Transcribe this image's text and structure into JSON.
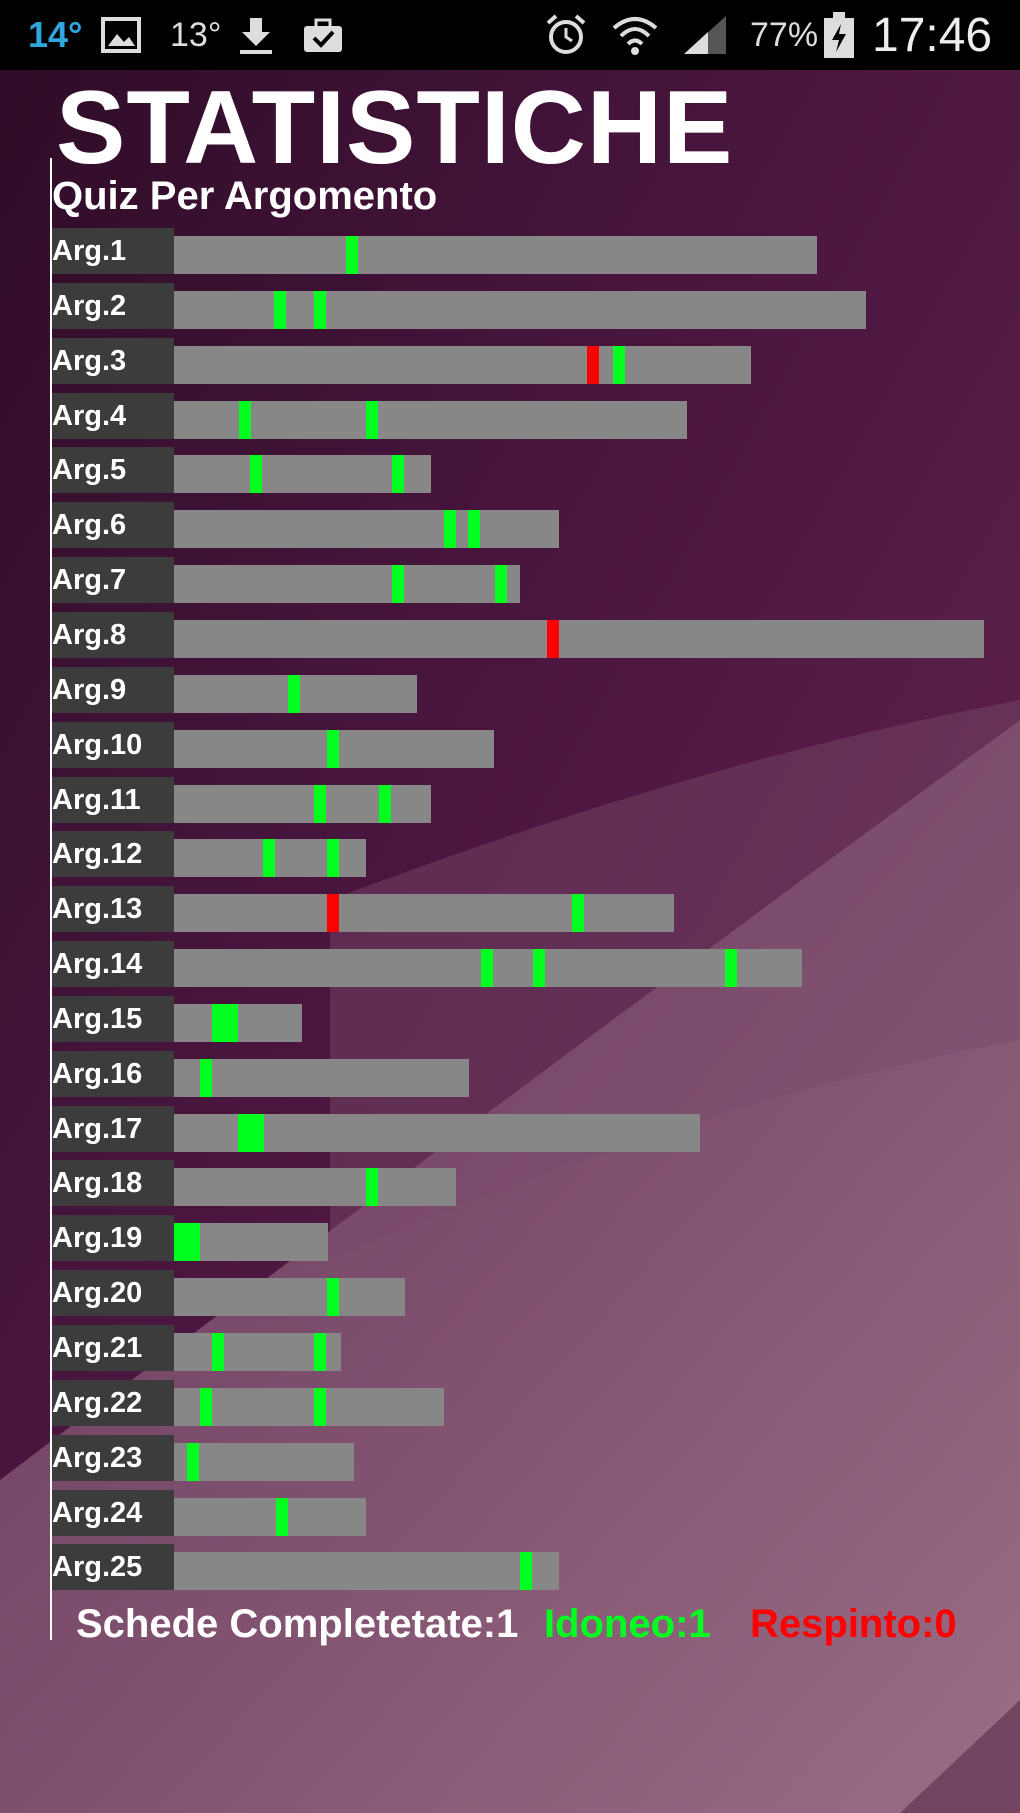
{
  "statusbar": {
    "temp1": "14°",
    "temp2": "13°",
    "battery_text": "77%",
    "clock": "17:46",
    "icons": [
      "picture-icon",
      "download-icon",
      "briefcase-check-icon",
      "alarm-icon",
      "wifi-icon",
      "signal-icon",
      "battery-charging-icon"
    ]
  },
  "title": "STATISTICHE",
  "subtitle": "Quiz Per Argomento",
  "colors": {
    "pass": "#00ff1e",
    "fail": "#ff0000",
    "bar": "#878787",
    "label_bg": "#3c3c3c"
  },
  "scale_max": 810,
  "rows": [
    {
      "label": "Arg.1",
      "total": 643,
      "marks": [
        {
          "at": 172,
          "color": "pass"
        }
      ]
    },
    {
      "label": "Arg.2",
      "total": 692,
      "marks": [
        {
          "at": 100,
          "color": "pass"
        },
        {
          "at": 140,
          "color": "pass"
        }
      ]
    },
    {
      "label": "Arg.3",
      "total": 577,
      "marks": [
        {
          "at": 413,
          "color": "fail"
        },
        {
          "at": 439,
          "color": "pass"
        }
      ]
    },
    {
      "label": "Arg.4",
      "total": 513,
      "marks": [
        {
          "at": 65,
          "color": "pass"
        },
        {
          "at": 192,
          "color": "pass"
        }
      ]
    },
    {
      "label": "Arg.5",
      "total": 257,
      "marks": [
        {
          "at": 76,
          "color": "pass"
        },
        {
          "at": 218,
          "color": "pass"
        }
      ]
    },
    {
      "label": "Arg.6",
      "total": 385,
      "marks": [
        {
          "at": 270,
          "color": "pass"
        },
        {
          "at": 294,
          "color": "pass"
        }
      ]
    },
    {
      "label": "Arg.7",
      "total": 346,
      "marks": [
        {
          "at": 218,
          "color": "pass"
        },
        {
          "at": 321,
          "color": "pass"
        }
      ]
    },
    {
      "label": "Arg.8",
      "total": 810,
      "marks": [
        {
          "at": 373,
          "color": "fail"
        }
      ]
    },
    {
      "label": "Arg.9",
      "total": 243,
      "marks": [
        {
          "at": 114,
          "color": "pass"
        }
      ]
    },
    {
      "label": "Arg.10",
      "total": 320,
      "marks": [
        {
          "at": 153,
          "color": "pass"
        }
      ]
    },
    {
      "label": "Arg.11",
      "total": 257,
      "marks": [
        {
          "at": 140,
          "color": "pass"
        },
        {
          "at": 205,
          "color": "pass"
        }
      ]
    },
    {
      "label": "Arg.12",
      "total": 192,
      "marks": [
        {
          "at": 89,
          "color": "pass"
        },
        {
          "at": 153,
          "color": "pass"
        }
      ]
    },
    {
      "label": "Arg.13",
      "total": 500,
      "marks": [
        {
          "at": 153,
          "color": "fail"
        },
        {
          "at": 398,
          "color": "pass"
        }
      ]
    },
    {
      "label": "Arg.14",
      "total": 628,
      "marks": [
        {
          "at": 307,
          "color": "pass"
        },
        {
          "at": 359,
          "color": "pass"
        },
        {
          "at": 551,
          "color": "pass"
        }
      ]
    },
    {
      "label": "Arg.15",
      "total": 128,
      "marks": [
        {
          "at": 38,
          "color": "pass",
          "w": 26
        }
      ]
    },
    {
      "label": "Arg.16",
      "total": 295,
      "marks": [
        {
          "at": 26,
          "color": "pass"
        }
      ]
    },
    {
      "label": "Arg.17",
      "total": 526,
      "marks": [
        {
          "at": 64,
          "color": "pass",
          "w": 26
        }
      ]
    },
    {
      "label": "Arg.18",
      "total": 282,
      "marks": [
        {
          "at": 192,
          "color": "pass"
        }
      ]
    },
    {
      "label": "Arg.19",
      "total": 154,
      "marks": [
        {
          "at": 0,
          "color": "pass",
          "w": 26
        }
      ]
    },
    {
      "label": "Arg.20",
      "total": 231,
      "marks": [
        {
          "at": 153,
          "color": "pass"
        }
      ]
    },
    {
      "label": "Arg.21",
      "total": 167,
      "marks": [
        {
          "at": 38,
          "color": "pass"
        },
        {
          "at": 140,
          "color": "pass"
        }
      ]
    },
    {
      "label": "Arg.22",
      "total": 270,
      "marks": [
        {
          "at": 26,
          "color": "pass"
        },
        {
          "at": 140,
          "color": "pass"
        }
      ]
    },
    {
      "label": "Arg.23",
      "total": 180,
      "marks": [
        {
          "at": 13,
          "color": "pass"
        }
      ]
    },
    {
      "label": "Arg.24",
      "total": 192,
      "marks": [
        {
          "at": 102,
          "color": "pass"
        }
      ]
    },
    {
      "label": "Arg.25",
      "total": 385,
      "marks": [
        {
          "at": 346,
          "color": "pass"
        }
      ]
    }
  ],
  "footer": {
    "total_label": "Schede Completetate:1",
    "pass_label": "Idoneo:1",
    "fail_label": "Respinto:0"
  }
}
